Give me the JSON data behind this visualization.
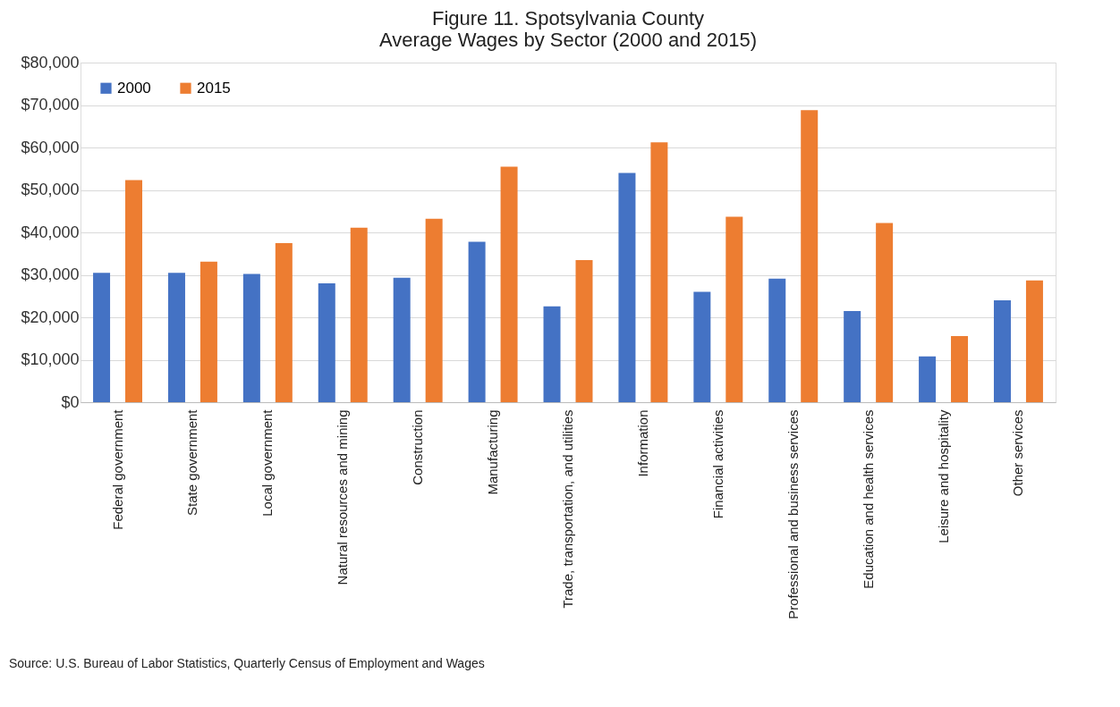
{
  "chart_data": {
    "type": "bar",
    "title": "Figure 11. Spotsylvania County\nAverage Wages by Sector (2000 and 2015)",
    "categories": [
      "Federal government",
      "State government",
      "Local government",
      "Natural resources and mining",
      "Construction",
      "Manufacturing",
      "Trade, transportation, and utilities",
      "Information",
      "Financial activities",
      "Professional and business services",
      "Education and health services",
      "Leisure and hospitality",
      "Other services"
    ],
    "series": [
      {
        "name": "2000",
        "color": "#4472c4",
        "values": [
          30500,
          30500,
          30200,
          28000,
          29300,
          37800,
          22600,
          54000,
          26000,
          29100,
          21500,
          10800,
          24000
        ]
      },
      {
        "name": "2015",
        "color": "#ed7d31",
        "values": [
          52300,
          33100,
          37500,
          41100,
          43200,
          55500,
          33500,
          61200,
          43700,
          68800,
          42200,
          15600,
          28700
        ]
      }
    ],
    "ylim": [
      0,
      80000
    ],
    "yticks": [
      {
        "value": 0,
        "label": "$0"
      },
      {
        "value": 10000,
        "label": "$10,000"
      },
      {
        "value": 20000,
        "label": "$20,000"
      },
      {
        "value": 30000,
        "label": "$30,000"
      },
      {
        "value": 40000,
        "label": "$40,000"
      },
      {
        "value": 50000,
        "label": "$50,000"
      },
      {
        "value": 60000,
        "label": "$60,000"
      },
      {
        "value": 70000,
        "label": "$70,000"
      },
      {
        "value": 80000,
        "label": "$80,000"
      }
    ],
    "grid": "y",
    "legend": "top left",
    "annotations": [
      "Source: U.S. Bureau of Labor Statistics, Quarterly Census of Employment and Wages"
    ]
  }
}
